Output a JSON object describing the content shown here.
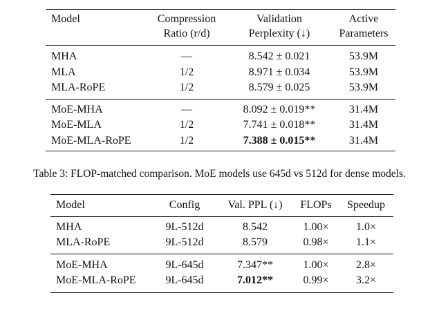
{
  "table1": {
    "headers": [
      [
        "Model"
      ],
      [
        "Compression",
        "Ratio (r/d)"
      ],
      [
        "Validation",
        "Perplexity (↓)"
      ],
      [
        "Active",
        "Parameters"
      ]
    ],
    "groups": [
      [
        {
          "model": "MHA",
          "ratio": "—",
          "ppl": "8.542 ± 0.021",
          "params": "53.9M"
        },
        {
          "model": "MLA",
          "ratio": "1/2",
          "ppl": "8.971 ± 0.034",
          "params": "53.9M"
        },
        {
          "model": "MLA-RoPE",
          "ratio": "1/2",
          "ppl": "8.579 ± 0.025",
          "params": "53.9M"
        }
      ],
      [
        {
          "model": "MoE-MHA",
          "ratio": "—",
          "ppl": "8.092 ± 0.019**",
          "params": "31.4M"
        },
        {
          "model": "MoE-MLA",
          "ratio": "1/2",
          "ppl": "7.741 ± 0.018**",
          "params": "31.4M"
        },
        {
          "model": "MoE-MLA-RoPE",
          "ratio": "1/2",
          "ppl": "7.388 ± 0.015**",
          "params": "31.4M"
        }
      ]
    ]
  },
  "caption": "Table 3: FLOP-matched comparison. MoE models use 645d vs 512d for dense models.",
  "table2": {
    "headers": [
      "Model",
      "Config",
      "Val. PPL (↓)",
      "FLOPs",
      "Speedup"
    ],
    "groups": [
      [
        {
          "model": "MHA",
          "config": "9L-512d",
          "ppl": "8.542",
          "flops": "1.00×",
          "speedup": "1.0×"
        },
        {
          "model": "MLA-RoPE",
          "config": "9L-512d",
          "ppl": "8.579",
          "flops": "0.98×",
          "speedup": "1.1×"
        }
      ],
      [
        {
          "model": "MoE-MHA",
          "config": "9L-645d",
          "ppl": "7.347**",
          "flops": "1.00×",
          "speedup": "2.8×"
        },
        {
          "model": "MoE-MLA-RoPE",
          "config": "9L-645d",
          "ppl": "7.012**",
          "flops": "0.99×",
          "speedup": "3.2×"
        }
      ]
    ]
  }
}
